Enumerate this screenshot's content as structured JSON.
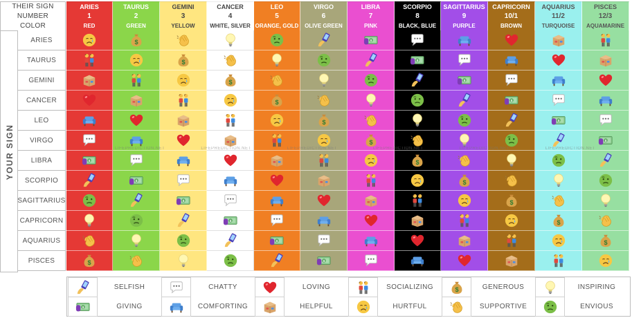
{
  "header": {
    "row_titles": [
      "THEIR SIGN",
      "NUMBER",
      "COLOR"
    ],
    "columns": [
      {
        "sign": "ARIES",
        "number": "1",
        "color": "RED",
        "bg": "#e53935",
        "fg": "#ffffff"
      },
      {
        "sign": "TAURUS",
        "number": "2",
        "color": "GREEN",
        "bg": "#8bd64a",
        "fg": "#ffffff"
      },
      {
        "sign": "GEMINI",
        "number": "3",
        "color": "YELLOW",
        "bg": "#ffe680",
        "fg": "#444444"
      },
      {
        "sign": "CANCER",
        "number": "4",
        "color": "WHITE, SILVER",
        "bg": "#ffffff",
        "fg": "#444444"
      },
      {
        "sign": "LEO",
        "number": "5",
        "color": "ORANGE, GOLD",
        "bg": "#f07f23",
        "fg": "#ffffff"
      },
      {
        "sign": "VIRGO",
        "number": "6",
        "color": "OLIVE GREEN",
        "bg": "#a8a67a",
        "fg": "#ffffff"
      },
      {
        "sign": "LIBRA",
        "number": "7",
        "color": "PINK",
        "bg": "#ea4fd0",
        "fg": "#ffffff"
      },
      {
        "sign": "SCORPIO",
        "number": "8",
        "color": "BLACK, BLUE",
        "bg": "#000000",
        "fg": "#ffffff"
      },
      {
        "sign": "SAGITTARIUS",
        "number": "9",
        "color": "PURPLE",
        "bg": "#a24ee8",
        "fg": "#ffffff"
      },
      {
        "sign": "CAPRICORN",
        "number": "10/1",
        "color": "BROWN",
        "bg": "#a46d1a",
        "fg": "#ffffff"
      },
      {
        "sign": "AQUARIUS",
        "number": "11/2",
        "color": "TURQUOISE",
        "bg": "#9af0ee",
        "fg": "#555555"
      },
      {
        "sign": "PISCES",
        "number": "12/3",
        "color": "AQUAMARINE",
        "bg": "#97dfa1",
        "fg": "#555555"
      }
    ]
  },
  "side_title": "YOUR SIGN",
  "rows": [
    {
      "label": "ARIES",
      "icons": [
        "hurtful",
        "generous",
        "supportive",
        "inspiring",
        "envious",
        "selfish",
        "giving",
        "chatty",
        "comforting",
        "loving",
        "helpful",
        "socializing"
      ]
    },
    {
      "label": "TAURUS",
      "icons": [
        "socializing",
        "hurtful",
        "generous",
        "supportive",
        "inspiring",
        "envious",
        "selfish",
        "giving",
        "chatty",
        "comforting",
        "loving",
        "helpful"
      ]
    },
    {
      "label": "GEMINI",
      "icons": [
        "helpful",
        "socializing",
        "hurtful",
        "generous",
        "supportive",
        "inspiring",
        "envious",
        "selfish",
        "giving",
        "chatty",
        "comforting",
        "loving"
      ]
    },
    {
      "label": "CANCER",
      "icons": [
        "loving",
        "helpful",
        "socializing",
        "hurtful",
        "generous",
        "supportive",
        "inspiring",
        "envious",
        "selfish",
        "giving",
        "chatty",
        "comforting"
      ]
    },
    {
      "label": "LEO",
      "icons": [
        "comforting",
        "loving",
        "helpful",
        "socializing",
        "hurtful",
        "generous",
        "supportive",
        "inspiring",
        "envious",
        "selfish",
        "giving",
        "chatty"
      ]
    },
    {
      "label": "VIRGO",
      "icons": [
        "chatty",
        "comforting",
        "loving",
        "helpful",
        "socializing",
        "hurtful",
        "generous",
        "supportive",
        "inspiring",
        "envious",
        "selfish",
        "giving"
      ]
    },
    {
      "label": "LIBRA",
      "icons": [
        "giving",
        "chatty",
        "comforting",
        "loving",
        "helpful",
        "socializing",
        "hurtful",
        "generous",
        "supportive",
        "inspiring",
        "envious",
        "selfish"
      ]
    },
    {
      "label": "SCORPIO",
      "icons": [
        "selfish",
        "giving",
        "chatty",
        "comforting",
        "loving",
        "helpful",
        "socializing",
        "hurtful",
        "generous",
        "supportive",
        "inspiring",
        "envious"
      ]
    },
    {
      "label": "SAGITTARIUS",
      "icons": [
        "envious",
        "selfish",
        "giving",
        "chatty",
        "comforting",
        "loving",
        "helpful",
        "socializing",
        "hurtful",
        "generous",
        "supportive",
        "inspiring"
      ]
    },
    {
      "label": "CAPRICORN",
      "icons": [
        "inspiring",
        "envious",
        "selfish",
        "giving",
        "chatty",
        "comforting",
        "loving",
        "helpful",
        "socializing",
        "hurtful",
        "generous",
        "supportive"
      ]
    },
    {
      "label": "AQUARIUS",
      "icons": [
        "supportive",
        "inspiring",
        "envious",
        "selfish",
        "giving",
        "chatty",
        "comforting",
        "loving",
        "helpful",
        "socializing",
        "hurtful",
        "generous"
      ]
    },
    {
      "label": "PISCES",
      "icons": [
        "generous",
        "supportive",
        "inspiring",
        "envious",
        "selfish",
        "giving",
        "chatty",
        "comforting",
        "loving",
        "helpful",
        "socializing",
        "hurtful"
      ]
    }
  ],
  "legend": {
    "row1": [
      {
        "icon": "selfish",
        "label": "SELFISH"
      },
      {
        "icon": "chatty",
        "label": "CHATTY"
      },
      {
        "icon": "loving",
        "label": "LOVING"
      },
      {
        "icon": "socializing",
        "label": "SOCIALIZING"
      },
      {
        "icon": "generous",
        "label": "GENEROUS"
      },
      {
        "icon": "inspiring",
        "label": "INSPIRING"
      }
    ],
    "row2": [
      {
        "icon": "giving",
        "label": "GIVING"
      },
      {
        "icon": "comforting",
        "label": "COMFORTING"
      },
      {
        "icon": "helpful",
        "label": "HELPFUL"
      },
      {
        "icon": "hurtful",
        "label": "HURTFUL"
      },
      {
        "icon": "supportive",
        "label": "SUPPORTIVE"
      },
      {
        "icon": "envious",
        "label": "ENVIOUS"
      }
    ]
  },
  "watermark": "LIFEPREDICTION.NET"
}
